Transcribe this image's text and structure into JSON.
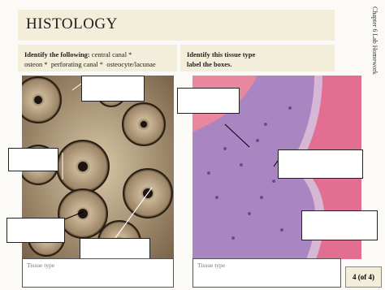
{
  "header": {
    "title": "HISTOLOGY"
  },
  "side_label": "Chapter 6 Lab Homework",
  "left_instructions": {
    "label": "Identify the following:",
    "line1": "central canal *",
    "line2": "osteon *  perforating canal *  osteocyte/lacunae"
  },
  "right_instructions": {
    "line1": "Identify this tissue type",
    "line2": "label the boxes."
  },
  "left_answer": {
    "label": "Tissue type"
  },
  "right_answer": {
    "label": "Tissue type"
  },
  "page_number": "4 (of 4)"
}
